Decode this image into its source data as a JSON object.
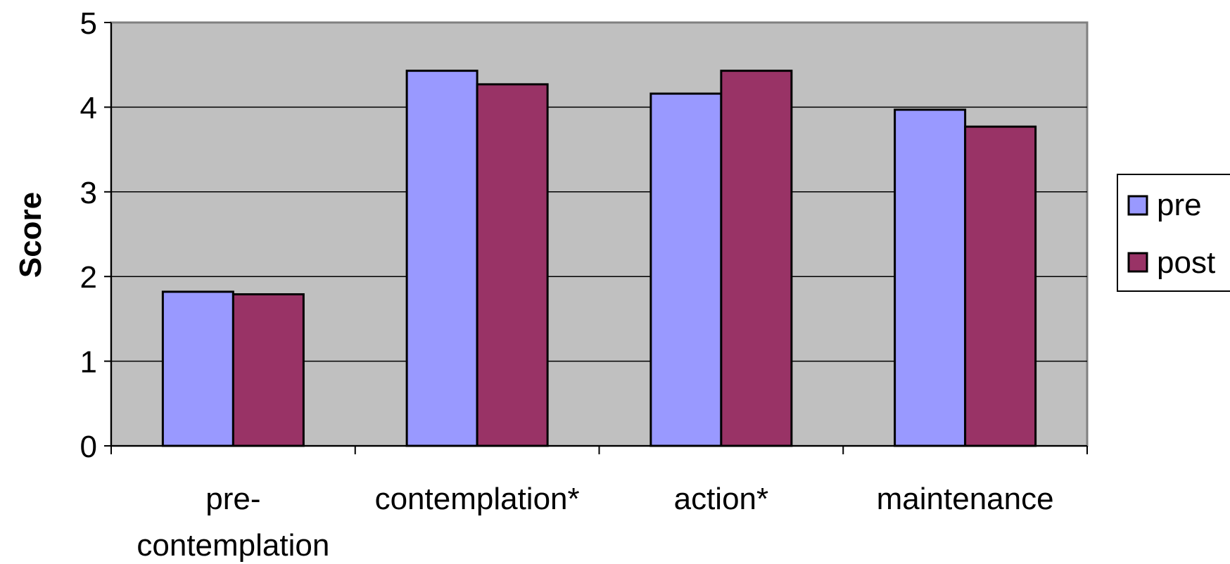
{
  "chart_data": {
    "type": "bar",
    "title": "",
    "xlabel": "",
    "ylabel": "Score",
    "ylim": [
      0,
      5
    ],
    "yticks": [
      "0",
      "1",
      "2",
      "3",
      "4",
      "5"
    ],
    "categories": [
      [
        "pre-",
        "contemplation"
      ],
      [
        "contemplation*"
      ],
      [
        "action*"
      ],
      [
        "maintenance"
      ]
    ],
    "series": [
      {
        "name": "pre",
        "color": "#9999ff",
        "values": [
          1.82,
          4.43,
          4.16,
          3.97
        ]
      },
      {
        "name": "post",
        "color": "#993366",
        "values": [
          1.79,
          4.27,
          4.43,
          3.77
        ]
      }
    ],
    "grid": true,
    "plot_background": "#c0c0c0",
    "legend_position": "right"
  }
}
